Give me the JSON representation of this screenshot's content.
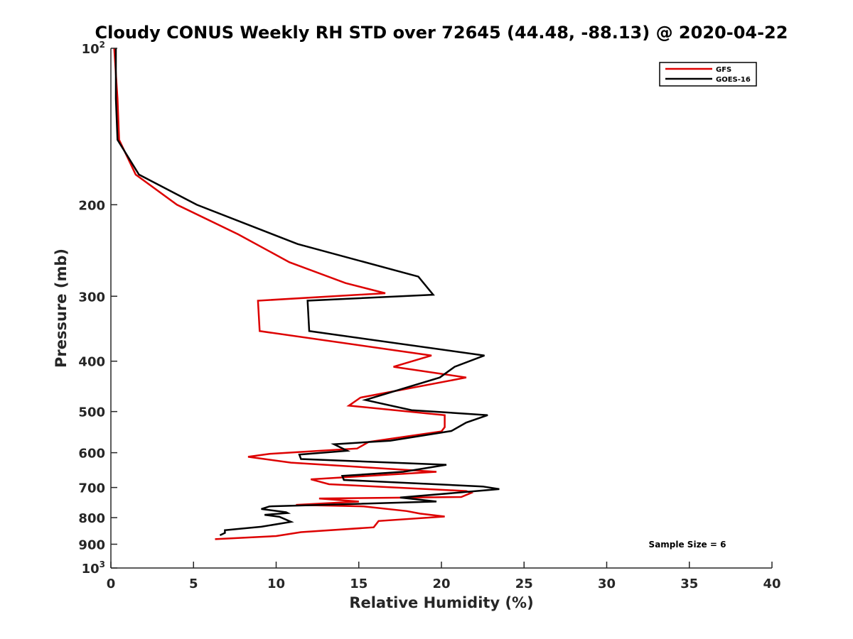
{
  "chart_data": {
    "type": "line",
    "title": "Cloudy CONUS Weekly RH STD over 72645 (44.48, -88.13) @ 2020-04-22",
    "xlabel": "Relative Humidity (%)",
    "ylabel": "Pressure (mb)",
    "xlim": [
      0,
      40
    ],
    "ylim": [
      100,
      1000
    ],
    "y_scale": "log",
    "y_reversed": true,
    "x_ticks": [
      "0",
      "5",
      "10",
      "15",
      "20",
      "25",
      "30",
      "35",
      "40"
    ],
    "y_ticks": [
      {
        "value": 100,
        "base": "10",
        "sup": "2"
      },
      {
        "value": 200,
        "label": "200"
      },
      {
        "value": 300,
        "label": "300"
      },
      {
        "value": 400,
        "label": "400"
      },
      {
        "value": 500,
        "label": "500"
      },
      {
        "value": 600,
        "label": "600"
      },
      {
        "value": 700,
        "label": "700"
      },
      {
        "value": 800,
        "label": "800"
      },
      {
        "value": 900,
        "label": "900"
      },
      {
        "value": 1000,
        "base": "10",
        "sup": "3"
      }
    ],
    "grid": false,
    "legend_position": "top-right",
    "annotation": "Sample Size = 6",
    "series": [
      {
        "name": "GFS",
        "color": "#dd0000",
        "points": [
          [
            0.2,
            100
          ],
          [
            0.4,
            125
          ],
          [
            0.5,
            150
          ],
          [
            1.5,
            175
          ],
          [
            4.0,
            200
          ],
          [
            7.7,
            228
          ],
          [
            10.8,
            258
          ],
          [
            14.2,
            283
          ],
          [
            16.6,
            296
          ],
          [
            8.9,
            306
          ],
          [
            9.0,
            350
          ],
          [
            19.4,
            390
          ],
          [
            17.1,
            410
          ],
          [
            21.5,
            430
          ],
          [
            15.1,
            470
          ],
          [
            14.4,
            487
          ],
          [
            20.2,
            508
          ],
          [
            20.2,
            536
          ],
          [
            20.0,
            546
          ],
          [
            15.6,
            572
          ],
          [
            14.9,
            589
          ],
          [
            9.6,
            603
          ],
          [
            8.3,
            611
          ],
          [
            10.9,
            627
          ],
          [
            19.7,
            653
          ],
          [
            12.1,
            675
          ],
          [
            13.2,
            690
          ],
          [
            21.5,
            711
          ],
          [
            21.8,
            717
          ],
          [
            21.2,
            730
          ],
          [
            12.6,
            735
          ],
          [
            15.0,
            745
          ],
          [
            11.2,
            756
          ],
          [
            15.3,
            761
          ],
          [
            17.9,
            777
          ],
          [
            18.7,
            786
          ],
          [
            20.2,
            796
          ],
          [
            16.2,
            812
          ],
          [
            15.9,
            835
          ],
          [
            11.5,
            853
          ],
          [
            10.0,
            868
          ],
          [
            6.3,
            880
          ]
        ]
      },
      {
        "name": "GOES-16",
        "color": "#000000",
        "points": [
          [
            0.3,
            100
          ],
          [
            0.3,
            125
          ],
          [
            0.4,
            150
          ],
          [
            1.7,
            175
          ],
          [
            5.2,
            200
          ],
          [
            11.3,
            238
          ],
          [
            18.6,
            275
          ],
          [
            19.5,
            298
          ],
          [
            11.9,
            306
          ],
          [
            12.0,
            350
          ],
          [
            22.6,
            390
          ],
          [
            20.8,
            410
          ],
          [
            19.9,
            430
          ],
          [
            15.4,
            475
          ],
          [
            18.2,
            497
          ],
          [
            22.8,
            508
          ],
          [
            21.5,
            525
          ],
          [
            20.6,
            545
          ],
          [
            16.9,
            569
          ],
          [
            13.5,
            578
          ],
          [
            14.3,
            595
          ],
          [
            11.4,
            605
          ],
          [
            11.5,
            617
          ],
          [
            20.3,
            633
          ],
          [
            17.7,
            653
          ],
          [
            14.0,
            665
          ],
          [
            14.1,
            677
          ],
          [
            22.5,
            697
          ],
          [
            23.5,
            705
          ],
          [
            17.5,
            732
          ],
          [
            19.7,
            745
          ],
          [
            9.6,
            761
          ],
          [
            9.1,
            770
          ],
          [
            10.6,
            781
          ],
          [
            10.7,
            784
          ],
          [
            9.3,
            790
          ],
          [
            10.2,
            797
          ],
          [
            10.9,
            815
          ],
          [
            9.1,
            833
          ],
          [
            6.9,
            846
          ],
          [
            6.9,
            856
          ],
          [
            6.6,
            865
          ]
        ]
      }
    ]
  }
}
